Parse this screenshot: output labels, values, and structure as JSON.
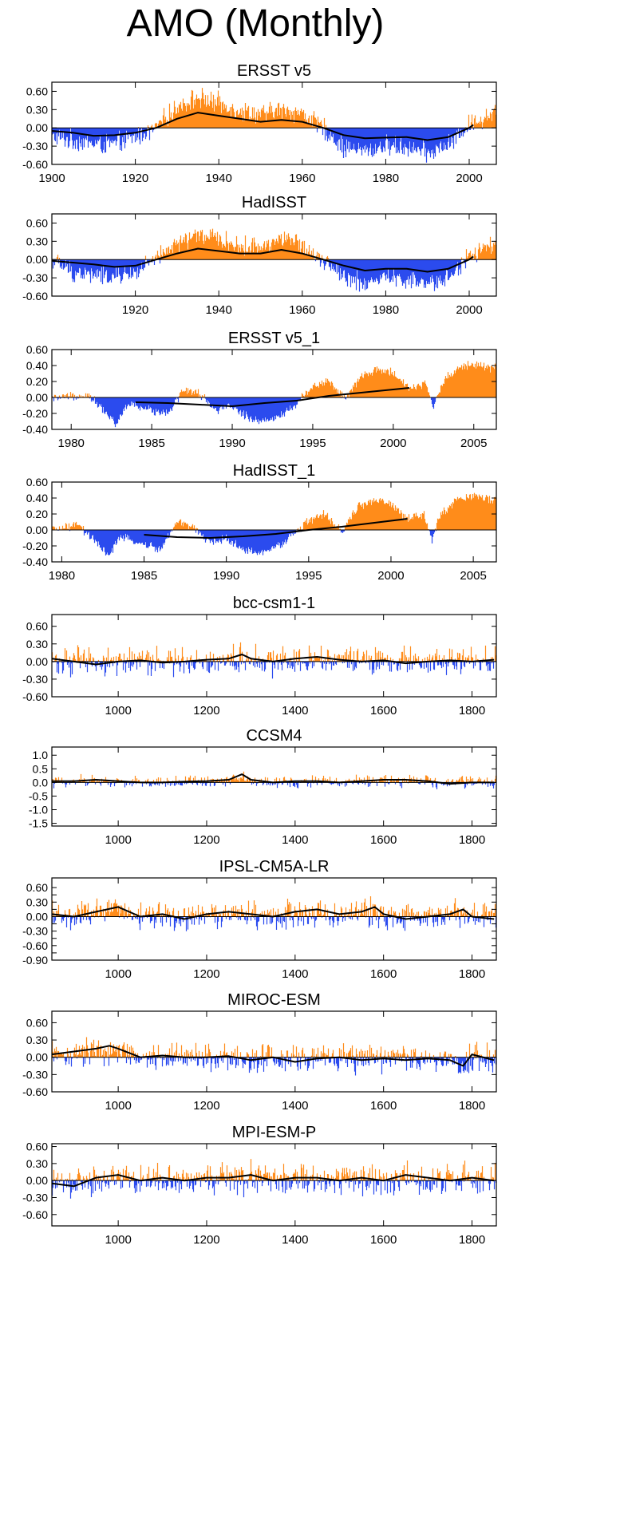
{
  "title": "AMO (Monthly)",
  "colors": {
    "positive": "#ff8c1a",
    "negative": "#2b4bee",
    "smooth": "#000000",
    "axis": "#000000"
  },
  "chart_data": [
    {
      "type": "bar",
      "title": "ERSST v5",
      "x_range": [
        1900,
        2006.5
      ],
      "ylim": [
        -0.6,
        0.75
      ],
      "y_ticks": [
        0.6,
        0.3,
        0.0,
        -0.3,
        -0.6
      ],
      "y_tick_labels": [
        "0.60",
        "0.30",
        "0.00",
        "-0.30",
        "-0.60"
      ],
      "x_ticks": [
        1900,
        1920,
        1940,
        1960,
        1980,
        2000
      ],
      "x_tick_labels": [
        "1900",
        "1920",
        "1940",
        "1960",
        "1980",
        "2000"
      ],
      "smooth_series": {
        "x": [
          1900,
          1905,
          1910,
          1915,
          1920,
          1925,
          1930,
          1935,
          1940,
          1945,
          1950,
          1955,
          1960,
          1965,
          1970,
          1975,
          1980,
          1985,
          1990,
          1995,
          2000,
          2001
        ],
        "y": [
          -0.05,
          -0.08,
          -0.13,
          -0.12,
          -0.08,
          0.0,
          0.15,
          0.25,
          0.2,
          0.15,
          0.1,
          0.13,
          0.1,
          0.0,
          -0.12,
          -0.17,
          -0.16,
          -0.15,
          -0.2,
          -0.15,
          0.0,
          0.05
        ]
      },
      "anomaly_series": {
        "x": [
          1900,
          1905,
          1910,
          1915,
          1920,
          1925,
          1930,
          1935,
          1940,
          1945,
          1950,
          1955,
          1960,
          1965,
          1970,
          1975,
          1980,
          1985,
          1990,
          1995,
          2000,
          2006
        ],
        "y": [
          -0.12,
          -0.15,
          -0.18,
          -0.2,
          -0.1,
          0.0,
          0.25,
          0.35,
          0.28,
          0.2,
          0.15,
          0.22,
          0.18,
          0.0,
          -0.25,
          -0.28,
          -0.2,
          -0.22,
          -0.3,
          -0.2,
          0.05,
          0.2
        ]
      },
      "monthly_amplitude": 0.15
    },
    {
      "type": "bar",
      "title": "HadISST",
      "x_range": [
        1900,
        2006.5
      ],
      "ylim": [
        -0.6,
        0.75
      ],
      "y_ticks": [
        0.6,
        0.3,
        0.0,
        -0.3,
        -0.6
      ],
      "y_tick_labels": [
        "0.60",
        "0.30",
        "0.00",
        "-0.30",
        "-0.60"
      ],
      "x_ticks": [
        1920,
        1940,
        1960,
        1980,
        2000
      ],
      "x_tick_labels": [
        "1920",
        "1940",
        "1960",
        "1980",
        "2000"
      ],
      "smooth_series": {
        "x": [
          1900,
          1905,
          1910,
          1915,
          1920,
          1925,
          1930,
          1935,
          1940,
          1945,
          1950,
          1955,
          1960,
          1965,
          1970,
          1975,
          1980,
          1985,
          1990,
          1995,
          2000,
          2001
        ],
        "y": [
          -0.02,
          -0.05,
          -0.08,
          -0.12,
          -0.1,
          0.0,
          0.1,
          0.18,
          0.14,
          0.1,
          0.1,
          0.16,
          0.1,
          0.0,
          -0.1,
          -0.18,
          -0.15,
          -0.15,
          -0.2,
          -0.15,
          0.0,
          0.05
        ]
      },
      "anomaly_series": {
        "x": [
          1900,
          1905,
          1910,
          1915,
          1920,
          1925,
          1930,
          1935,
          1940,
          1945,
          1950,
          1955,
          1960,
          1965,
          1970,
          1975,
          1980,
          1985,
          1990,
          1995,
          2000,
          2006
        ],
        "y": [
          0.0,
          -0.18,
          -0.2,
          -0.22,
          -0.15,
          0.0,
          0.2,
          0.3,
          0.25,
          0.15,
          0.15,
          0.25,
          0.18,
          0.0,
          -0.2,
          -0.3,
          -0.2,
          -0.25,
          -0.3,
          -0.2,
          0.05,
          0.2
        ]
      },
      "monthly_amplitude": 0.14
    },
    {
      "type": "bar",
      "title": "ERSST v5_1",
      "x_range": [
        1978.8,
        2006.4
      ],
      "ylim": [
        -0.4,
        0.6
      ],
      "y_ticks": [
        0.6,
        0.4,
        0.2,
        0.0,
        -0.2,
        -0.4
      ],
      "y_tick_labels": [
        "0.60",
        "0.40",
        "0.20",
        "0.00",
        "-0.20",
        "-0.40"
      ],
      "x_ticks": [
        1980,
        1985,
        1990,
        1995,
        2000,
        2005
      ],
      "x_tick_labels": [
        "1980",
        "1985",
        "1990",
        "1995",
        "2000",
        "2005"
      ],
      "smooth_series": {
        "x": [
          1984,
          1986,
          1988,
          1990,
          1992,
          1994,
          1996,
          1998,
          2000,
          2001
        ],
        "y": [
          -0.06,
          -0.07,
          -0.09,
          -0.11,
          -0.07,
          -0.04,
          0.02,
          0.06,
          0.1,
          0.12
        ]
      },
      "anomaly_series": {
        "x": [
          1979,
          1980,
          1981,
          1982,
          1982.8,
          1983.5,
          1984.5,
          1986,
          1987,
          1988,
          1989,
          1990,
          1991,
          1992,
          1993,
          1994,
          1995,
          1996,
          1997,
          1998,
          1999,
          2000,
          2001,
          2002,
          2002.5,
          2003,
          2004,
          2005,
          2006
        ],
        "y": [
          0.02,
          0.04,
          0.08,
          -0.12,
          -0.3,
          -0.05,
          -0.1,
          -0.15,
          0.15,
          0.1,
          -0.1,
          -0.05,
          -0.2,
          -0.25,
          -0.2,
          -0.05,
          0.15,
          0.2,
          -0.05,
          0.22,
          0.3,
          0.25,
          0.05,
          0.1,
          -0.2,
          0.1,
          0.3,
          0.35,
          0.3
        ]
      },
      "monthly_amplitude": 0.05
    },
    {
      "type": "bar",
      "title": "HadISST_1",
      "x_range": [
        1979.4,
        2006.4
      ],
      "ylim": [
        -0.4,
        0.6
      ],
      "y_ticks": [
        0.6,
        0.4,
        0.2,
        0.0,
        -0.2,
        -0.4
      ],
      "y_tick_labels": [
        "0.60",
        "0.40",
        "0.20",
        "0.00",
        "-0.20",
        "-0.40"
      ],
      "x_ticks": [
        1980,
        1985,
        1990,
        1995,
        2000,
        2005
      ],
      "x_tick_labels": [
        "1980",
        "1985",
        "1990",
        "1995",
        "2000",
        "2005"
      ],
      "smooth_series": {
        "x": [
          1985,
          1987,
          1989,
          1991,
          1993,
          1995,
          1997,
          1999,
          2001
        ],
        "y": [
          -0.06,
          -0.09,
          -0.1,
          -0.08,
          -0.05,
          0.0,
          0.04,
          0.09,
          0.14
        ]
      },
      "anomaly_series": {
        "x": [
          1980,
          1981,
          1982,
          1982.8,
          1983.5,
          1984.5,
          1986,
          1987,
          1988,
          1989,
          1990,
          1991,
          1992,
          1993,
          1994,
          1995,
          1996,
          1997,
          1998,
          1999,
          2000,
          2001,
          2002,
          2002.5,
          2003,
          2004,
          2005,
          2006
        ],
        "y": [
          0.05,
          0.1,
          -0.1,
          -0.3,
          -0.05,
          -0.12,
          -0.2,
          0.15,
          0.1,
          -0.1,
          -0.05,
          -0.2,
          -0.25,
          -0.2,
          -0.05,
          0.12,
          0.18,
          -0.05,
          0.25,
          0.32,
          0.25,
          0.05,
          0.1,
          -0.2,
          0.1,
          0.3,
          0.35,
          0.3
        ]
      },
      "monthly_amplitude": 0.05
    },
    {
      "type": "bar",
      "title": "bcc-csm1-1",
      "x_range": [
        850,
        1855
      ],
      "ylim": [
        -0.6,
        0.8
      ],
      "y_ticks": [
        0.6,
        0.3,
        0.0,
        -0.3,
        -0.6
      ],
      "y_tick_labels": [
        "0.60",
        "0.30",
        "0.00",
        "-0.30",
        "-0.60"
      ],
      "x_ticks": [
        1000,
        1200,
        1400,
        1600,
        1800
      ],
      "x_tick_labels": [
        "1000",
        "1200",
        "1400",
        "1600",
        "1800"
      ],
      "smooth_series": {
        "x": [
          850,
          900,
          950,
          1000,
          1050,
          1100,
          1150,
          1200,
          1250,
          1280,
          1300,
          1350,
          1400,
          1450,
          1500,
          1550,
          1600,
          1650,
          1700,
          1750,
          1800,
          1850
        ],
        "y": [
          0.05,
          0.0,
          -0.05,
          0.0,
          0.02,
          -0.02,
          0.0,
          0.03,
          0.05,
          0.12,
          0.05,
          0.0,
          0.05,
          0.08,
          0.03,
          0.0,
          0.02,
          -0.03,
          0.0,
          0.02,
          0.0,
          0.03
        ]
      },
      "anomaly_series": {
        "x": [
          850,
          1850
        ],
        "y": [
          0.0,
          0.0
        ]
      },
      "monthly_amplitude": 0.22
    },
    {
      "type": "bar",
      "title": "CCSM4",
      "x_range": [
        850,
        1855
      ],
      "ylim": [
        -1.6,
        1.3
      ],
      "y_ticks": [
        1.0,
        0.5,
        0.0,
        -0.5,
        -1.0,
        -1.5
      ],
      "y_tick_labels": [
        "1.0",
        "0.5",
        "0.0",
        "-0.5",
        "-1.0",
        "-1.5"
      ],
      "x_ticks": [
        1000,
        1200,
        1400,
        1600,
        1800
      ],
      "x_tick_labels": [
        "1000",
        "1200",
        "1400",
        "1600",
        "1800"
      ],
      "smooth_series": {
        "x": [
          850,
          900,
          950,
          1000,
          1050,
          1100,
          1150,
          1200,
          1250,
          1280,
          1300,
          1350,
          1400,
          1450,
          1500,
          1550,
          1600,
          1650,
          1700,
          1750,
          1800,
          1850
        ],
        "y": [
          0.05,
          0.05,
          0.1,
          0.05,
          0.0,
          0.0,
          0.03,
          0.05,
          0.1,
          0.3,
          0.1,
          0.0,
          0.05,
          0.05,
          0.0,
          0.05,
          0.1,
          0.1,
          0.05,
          -0.05,
          0.0,
          0.0
        ]
      },
      "anomaly_series": {
        "x": [
          850,
          1850
        ],
        "y": [
          0.0,
          0.0
        ]
      },
      "monthly_amplitude": 0.2
    },
    {
      "type": "bar",
      "title": "IPSL-CM5A-LR",
      "x_range": [
        850,
        1855
      ],
      "ylim": [
        -0.9,
        0.8
      ],
      "y_ticks": [
        0.6,
        0.45,
        0.3,
        0.15,
        0.0,
        -0.15,
        -0.3,
        -0.45,
        -0.6,
        -0.75,
        -0.9
      ],
      "y_tick_labels": [
        "0.60",
        "0.30",
        "0.00",
        "-0.30",
        "-0.60",
        "-0.90"
      ],
      "y_label_values": [
        0.6,
        0.3,
        0.0,
        -0.3,
        -0.6,
        -0.9
      ],
      "x_ticks": [
        1000,
        1200,
        1400,
        1600,
        1800
      ],
      "x_tick_labels": [
        "1000",
        "1200",
        "1400",
        "1600",
        "1800"
      ],
      "smooth_series": {
        "x": [
          850,
          900,
          950,
          1000,
          1050,
          1100,
          1150,
          1200,
          1250,
          1300,
          1350,
          1400,
          1450,
          1500,
          1550,
          1580,
          1600,
          1650,
          1700,
          1750,
          1780,
          1800,
          1850
        ],
        "y": [
          0.05,
          0.0,
          0.1,
          0.2,
          0.0,
          0.05,
          -0.05,
          0.05,
          0.1,
          0.05,
          0.0,
          0.1,
          0.15,
          0.05,
          0.1,
          0.2,
          0.05,
          -0.05,
          0.0,
          0.05,
          0.15,
          0.0,
          -0.05
        ]
      },
      "anomaly_series": {
        "x": [
          850,
          1850
        ],
        "y": [
          0.0,
          0.0
        ]
      },
      "monthly_amplitude": 0.25
    },
    {
      "type": "bar",
      "title": "MIROC-ESM",
      "x_range": [
        850,
        1855
      ],
      "ylim": [
        -0.6,
        0.8
      ],
      "y_ticks": [
        0.6,
        0.3,
        0.0,
        -0.3,
        -0.6
      ],
      "y_tick_labels": [
        "0.60",
        "0.30",
        "0.00",
        "-0.30",
        "-0.60"
      ],
      "x_ticks": [
        1000,
        1200,
        1400,
        1600,
        1800
      ],
      "x_tick_labels": [
        "1000",
        "1200",
        "1400",
        "1600",
        "1800"
      ],
      "smooth_series": {
        "x": [
          850,
          900,
          950,
          980,
          1000,
          1050,
          1100,
          1150,
          1200,
          1250,
          1300,
          1350,
          1400,
          1450,
          1500,
          1550,
          1600,
          1650,
          1700,
          1750,
          1780,
          1800,
          1850
        ],
        "y": [
          0.05,
          0.1,
          0.15,
          0.2,
          0.15,
          0.0,
          0.03,
          0.0,
          0.0,
          0.02,
          -0.05,
          0.0,
          -0.08,
          -0.02,
          0.0,
          -0.05,
          -0.02,
          -0.05,
          -0.02,
          -0.05,
          -0.15,
          0.05,
          -0.05
        ]
      },
      "anomaly_series": {
        "x": [
          850,
          1850
        ],
        "y": [
          0.0,
          0.0
        ]
      },
      "monthly_amplitude": 0.22
    },
    {
      "type": "bar",
      "title": "MPI-ESM-P",
      "x_range": [
        850,
        1855
      ],
      "ylim": [
        -0.8,
        0.65
      ],
      "y_ticks": [
        0.6,
        0.3,
        0.0,
        -0.3,
        -0.6
      ],
      "y_tick_labels": [
        "0.60",
        "0.30",
        "0.00",
        "-0.30",
        "-0.60"
      ],
      "x_ticks": [
        1000,
        1200,
        1400,
        1600,
        1800
      ],
      "x_tick_labels": [
        "1000",
        "1200",
        "1400",
        "1600",
        "1800"
      ],
      "smooth_series": {
        "x": [
          850,
          900,
          950,
          1000,
          1050,
          1100,
          1150,
          1200,
          1250,
          1300,
          1350,
          1400,
          1450,
          1500,
          1550,
          1600,
          1650,
          1700,
          1750,
          1800,
          1850
        ],
        "y": [
          -0.05,
          -0.1,
          0.05,
          0.1,
          0.0,
          0.05,
          0.0,
          0.05,
          0.05,
          0.1,
          0.0,
          0.05,
          0.05,
          0.0,
          0.05,
          0.0,
          0.1,
          0.05,
          0.0,
          0.05,
          0.0
        ]
      },
      "anomaly_series": {
        "x": [
          850,
          1850
        ],
        "y": [
          0.0,
          0.0
        ]
      },
      "monthly_amplitude": 0.25
    }
  ]
}
